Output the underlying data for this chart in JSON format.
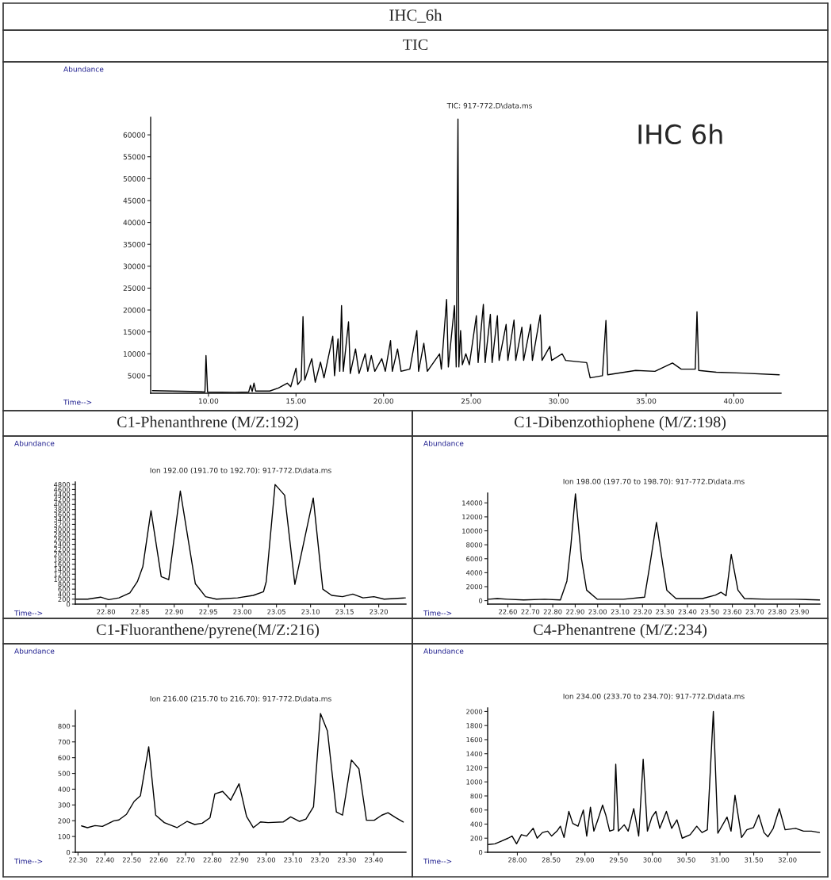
{
  "chart_data": [
    {
      "type": "line",
      "title": "TIC",
      "subtitle": "TIC: 917-772.D\\data.ms",
      "xlabel": "Time-->",
      "ylabel": "Abundance",
      "annotations": [
        "IHC_6h",
        "IHC 6h"
      ],
      "series": [
        {
          "color": "#000000",
          "x": [
            6.8,
            9.0,
            9.8,
            9.86,
            9.95,
            11.5,
            12.3,
            12.4,
            12.5,
            12.6,
            12.7,
            13.5,
            14.0,
            14.5,
            14.7,
            15.0,
            15.1,
            15.3,
            15.4,
            15.5,
            15.9,
            16.1,
            16.4,
            16.6,
            17.1,
            17.2,
            17.4,
            17.5,
            17.6,
            17.7,
            18.0,
            18.1,
            18.4,
            18.6,
            18.95,
            19.1,
            19.3,
            19.5,
            19.9,
            20.1,
            20.4,
            20.5,
            20.8,
            21.0,
            21.5,
            21.9,
            22.0,
            22.3,
            22.5,
            23.2,
            23.3,
            23.6,
            23.7,
            24.05,
            24.15,
            24.25,
            24.3,
            24.4,
            24.5,
            24.7,
            24.9,
            25.3,
            25.4,
            25.7,
            25.8,
            26.1,
            26.2,
            26.5,
            26.6,
            27.0,
            27.1,
            27.45,
            27.55,
            27.9,
            28.0,
            28.4,
            28.5,
            28.95,
            29.05,
            29.5,
            29.6,
            30.2,
            30.4,
            31.6,
            31.8,
            32.5,
            32.7,
            32.8,
            34.4,
            35.5,
            36.5,
            37.0,
            37.8,
            37.9,
            38.0,
            39.0,
            40.5,
            42.6
          ],
          "values": [
            1600,
            1400,
            1300,
            9600,
            1300,
            1200,
            1300,
            2800,
            1400,
            3300,
            1500,
            1500,
            2200,
            3300,
            2500,
            6700,
            3000,
            4000,
            18500,
            4000,
            8900,
            3500,
            8100,
            4500,
            14000,
            5000,
            13400,
            6000,
            21000,
            6000,
            17300,
            5500,
            11100,
            5500,
            10000,
            6000,
            9600,
            6000,
            8900,
            6000,
            13000,
            6000,
            11100,
            6000,
            6500,
            15300,
            6000,
            12400,
            6000,
            10000,
            6500,
            22400,
            7000,
            21000,
            7000,
            63600,
            7000,
            15300,
            7500,
            10000,
            7500,
            18700,
            8000,
            21300,
            8000,
            19000,
            8000,
            18700,
            8500,
            16700,
            8500,
            17700,
            8500,
            16100,
            8500,
            16700,
            8500,
            18900,
            8500,
            11700,
            8500,
            10000,
            8500,
            8000,
            4500,
            5000,
            17600,
            5200,
            6200,
            6000,
            7900,
            6500,
            6500,
            19600,
            6200,
            5800,
            5600,
            5200
          ]
        }
      ],
      "xlim": [
        6.7,
        42.7
      ],
      "ylim": [
        1000,
        64000
      ],
      "xticks": [
        {
          "value": 10,
          "label": "10.00"
        },
        {
          "value": 15,
          "label": "15.00"
        },
        {
          "value": 20,
          "label": "20.00"
        },
        {
          "value": 25,
          "label": "25.00"
        },
        {
          "value": 30,
          "label": "30.00"
        },
        {
          "value": 35,
          "label": "35.00"
        },
        {
          "value": 40,
          "label": "40.00"
        }
      ],
      "yticks": [
        5000,
        10000,
        15000,
        20000,
        25000,
        30000,
        35000,
        40000,
        45000,
        50000,
        55000,
        60000
      ],
      "grid": false,
      "legend": false
    },
    {
      "type": "line",
      "title": "C1-Phenanthrene (M/Z:192)",
      "subtitle": "Ion 192.00 (191.70 to 192.70): 917-772.D\\data.ms",
      "xlabel": "Time-->",
      "ylabel": "Abundance",
      "series": [
        {
          "color": "#000000",
          "x": [
            22.756,
            22.773,
            22.792,
            22.804,
            22.819,
            22.835,
            22.846,
            22.854,
            22.866,
            22.881,
            22.892,
            22.909,
            22.931,
            22.946,
            22.962,
            22.993,
            23.016,
            23.031,
            23.035,
            23.048,
            23.062,
            23.077,
            23.104,
            23.118,
            23.131,
            23.147,
            23.162,
            23.177,
            23.193,
            23.208,
            23.239
          ],
          "values": [
            200,
            200,
            280,
            180,
            250,
            450,
            900,
            1500,
            3750,
            1100,
            980,
            4540,
            820,
            300,
            200,
            250,
            350,
            500,
            900,
            4800,
            4370,
            790,
            4260,
            600,
            350,
            300,
            400,
            250,
            300,
            200,
            250
          ]
        }
      ],
      "xlim": [
        22.755,
        23.24
      ],
      "ylim": [
        0,
        4900
      ],
      "xticks": [
        {
          "value": 22.8,
          "label": "22.80"
        },
        {
          "value": 22.85,
          "label": "22.85"
        },
        {
          "value": 22.9,
          "label": "22.90"
        },
        {
          "value": 22.95,
          "label": "22.95"
        },
        {
          "value": 23.0,
          "label": "23.00"
        },
        {
          "value": 23.05,
          "label": "23.05"
        },
        {
          "value": 23.1,
          "label": "23.10"
        },
        {
          "value": 23.15,
          "label": "23.15"
        },
        {
          "value": 23.2,
          "label": "23.20"
        }
      ],
      "yticks": [
        0,
        200,
        400,
        600,
        800,
        1000,
        1200,
        1400,
        1600,
        1800,
        2000,
        2200,
        2400,
        2600,
        2800,
        3000,
        3200,
        3400,
        3600,
        3800,
        4000,
        4200,
        4400,
        4600,
        4800
      ],
      "grid": false,
      "legend": false
    },
    {
      "type": "line",
      "title": "C1-Dibenzothiophene (M/Z:198)",
      "subtitle": "Ion 198.00 (197.70 to 198.70): 917-772.D\\data.ms",
      "xlabel": "Time-->",
      "ylabel": "Abundance",
      "series": [
        {
          "color": "#000000",
          "x": [
            22.512,
            22.553,
            22.6,
            22.67,
            22.764,
            22.834,
            22.863,
            22.881,
            22.901,
            22.928,
            22.951,
            22.998,
            23.115,
            23.209,
            23.232,
            23.262,
            23.291,
            23.308,
            23.349,
            23.467,
            23.525,
            23.549,
            23.572,
            23.595,
            23.625,
            23.654,
            23.759,
            23.876,
            23.988
          ],
          "values": [
            200,
            300,
            200,
            100,
            200,
            100,
            2800,
            8000,
            15300,
            6000,
            1500,
            200,
            200,
            500,
            5000,
            11200,
            5000,
            1500,
            300,
            300,
            800,
            1200,
            700,
            6600,
            1500,
            300,
            200,
            200,
            100
          ]
        }
      ],
      "xlim": [
        22.51,
        23.99
      ],
      "ylim": [
        -500,
        15400
      ],
      "xticks": [
        {
          "value": 22.6,
          "label": "22.60"
        },
        {
          "value": 22.7,
          "label": "22.70"
        },
        {
          "value": 22.8,
          "label": "22.80"
        },
        {
          "value": 22.9,
          "label": "22.90"
        },
        {
          "value": 23.0,
          "label": "23.00"
        },
        {
          "value": 23.1,
          "label": "23.10"
        },
        {
          "value": 23.2,
          "label": "23.20"
        },
        {
          "value": 23.3,
          "label": "23.30"
        },
        {
          "value": 23.4,
          "label": "23.40"
        },
        {
          "value": 23.5,
          "label": "23.50"
        },
        {
          "value": 23.6,
          "label": "23.60"
        },
        {
          "value": 23.7,
          "label": "23.70"
        },
        {
          "value": 23.8,
          "label": "23.80"
        },
        {
          "value": 23.9,
          "label": "23.90"
        }
      ],
      "yticks": [
        0,
        2000,
        4000,
        6000,
        8000,
        10000,
        12000,
        14000
      ],
      "grid": false,
      "legend": false
    },
    {
      "type": "line",
      "title": "C1-Fluoranthene/pyrene(M/Z:216)",
      "subtitle": "Ion 216.00 (215.70 to 216.70): 917-772.D\\data.ms",
      "xlabel": "Time-->",
      "ylabel": "Abundance",
      "series": [
        {
          "color": "#000000",
          "x": [
            22.313,
            22.335,
            22.363,
            22.391,
            22.433,
            22.452,
            22.48,
            22.509,
            22.532,
            22.563,
            22.589,
            22.621,
            22.668,
            22.706,
            22.734,
            22.762,
            22.791,
            22.809,
            22.838,
            22.868,
            22.899,
            22.927,
            22.952,
            22.979,
            23.007,
            23.063,
            23.091,
            23.124,
            23.148,
            23.176,
            23.202,
            23.228,
            23.261,
            23.284,
            23.317,
            23.345,
            23.373,
            23.402,
            23.43,
            23.453,
            23.482,
            23.51
          ],
          "values": [
            167,
            156,
            169,
            164,
            199,
            205,
            240,
            323,
            358,
            669,
            235,
            188,
            156,
            196,
            176,
            184,
            219,
            370,
            386,
            331,
            434,
            227,
            156,
            192,
            188,
            192,
            224,
            196,
            211,
            288,
            880,
            768,
            256,
            235,
            585,
            529,
            203,
            203,
            235,
            251,
            219,
            192
          ]
        }
      ],
      "xlim": [
        22.29,
        23.52
      ],
      "ylim": [
        0,
        900
      ],
      "xticks": [
        {
          "value": 22.3,
          "label": "22.30"
        },
        {
          "value": 22.4,
          "label": "22.40"
        },
        {
          "value": 22.5,
          "label": "22.50"
        },
        {
          "value": 22.6,
          "label": "22.60"
        },
        {
          "value": 22.7,
          "label": "22.70"
        },
        {
          "value": 22.8,
          "label": "22.80"
        },
        {
          "value": 22.9,
          "label": "22.90"
        },
        {
          "value": 23.0,
          "label": "23.00"
        },
        {
          "value": 23.1,
          "label": "23.10"
        },
        {
          "value": 23.2,
          "label": "23.20"
        },
        {
          "value": 23.3,
          "label": "23.30"
        },
        {
          "value": 23.4,
          "label": "23.40"
        }
      ],
      "yticks": [
        0,
        100,
        200,
        300,
        400,
        500,
        600,
        700,
        800
      ],
      "grid": false,
      "legend": false
    },
    {
      "type": "line",
      "title": "C4-Phenantrene (M/Z:234)",
      "subtitle": "Ion 234.00 (233.70 to 234.70): 917-772.D\\data.ms",
      "xlabel": "Time-->",
      "ylabel": "Abundance",
      "series": [
        {
          "color": "#000000",
          "x": [
            27.57,
            27.668,
            27.766,
            27.863,
            27.922,
            27.988,
            28.059,
            28.137,
            28.234,
            28.293,
            28.371,
            28.449,
            28.508,
            28.586,
            28.637,
            28.691,
            28.762,
            28.82,
            28.898,
            28.977,
            29.027,
            29.082,
            29.133,
            29.191,
            29.262,
            29.309,
            29.367,
            29.426,
            29.457,
            29.496,
            29.582,
            29.641,
            29.723,
            29.797,
            29.863,
            29.926,
            29.992,
            30.051,
            30.109,
            30.207,
            30.285,
            30.363,
            30.441,
            30.559,
            30.656,
            30.734,
            30.813,
            30.902,
            30.969,
            31.105,
            31.164,
            31.223,
            31.32,
            31.398,
            31.496,
            31.574,
            31.652,
            31.711,
            31.789,
            31.879,
            31.965,
            32.121,
            32.238,
            32.355,
            32.473
          ],
          "values": [
            110,
            120,
            160,
            200,
            230,
            120,
            250,
            230,
            340,
            200,
            280,
            300,
            230,
            300,
            370,
            210,
            580,
            410,
            370,
            600,
            230,
            640,
            300,
            460,
            670,
            530,
            300,
            320,
            1250,
            300,
            390,
            300,
            620,
            230,
            1320,
            300,
            500,
            580,
            340,
            580,
            340,
            460,
            200,
            250,
            370,
            280,
            320,
            2000,
            270,
            500,
            300,
            810,
            210,
            320,
            350,
            530,
            280,
            220,
            340,
            620,
            320,
            340,
            300,
            300,
            280
          ]
        }
      ],
      "xlim": [
        27.56,
        32.48
      ],
      "ylim": [
        0,
        2050
      ],
      "xticks": [
        {
          "value": 28,
          "label": "28.00"
        },
        {
          "value": 28.5,
          "label": "28.50"
        },
        {
          "value": 29,
          "label": "29.00"
        },
        {
          "value": 29.5,
          "label": "29.50"
        },
        {
          "value": 30,
          "label": "30.00"
        },
        {
          "value": 30.5,
          "label": "30.50"
        },
        {
          "value": 31,
          "label": "31.00"
        },
        {
          "value": 31.5,
          "label": "31.50"
        },
        {
          "value": 32,
          "label": "32.00"
        }
      ],
      "yticks": [
        0,
        200,
        400,
        600,
        800,
        1000,
        1200,
        1400,
        1600,
        1800,
        2000
      ],
      "grid": false,
      "legend": false
    }
  ]
}
